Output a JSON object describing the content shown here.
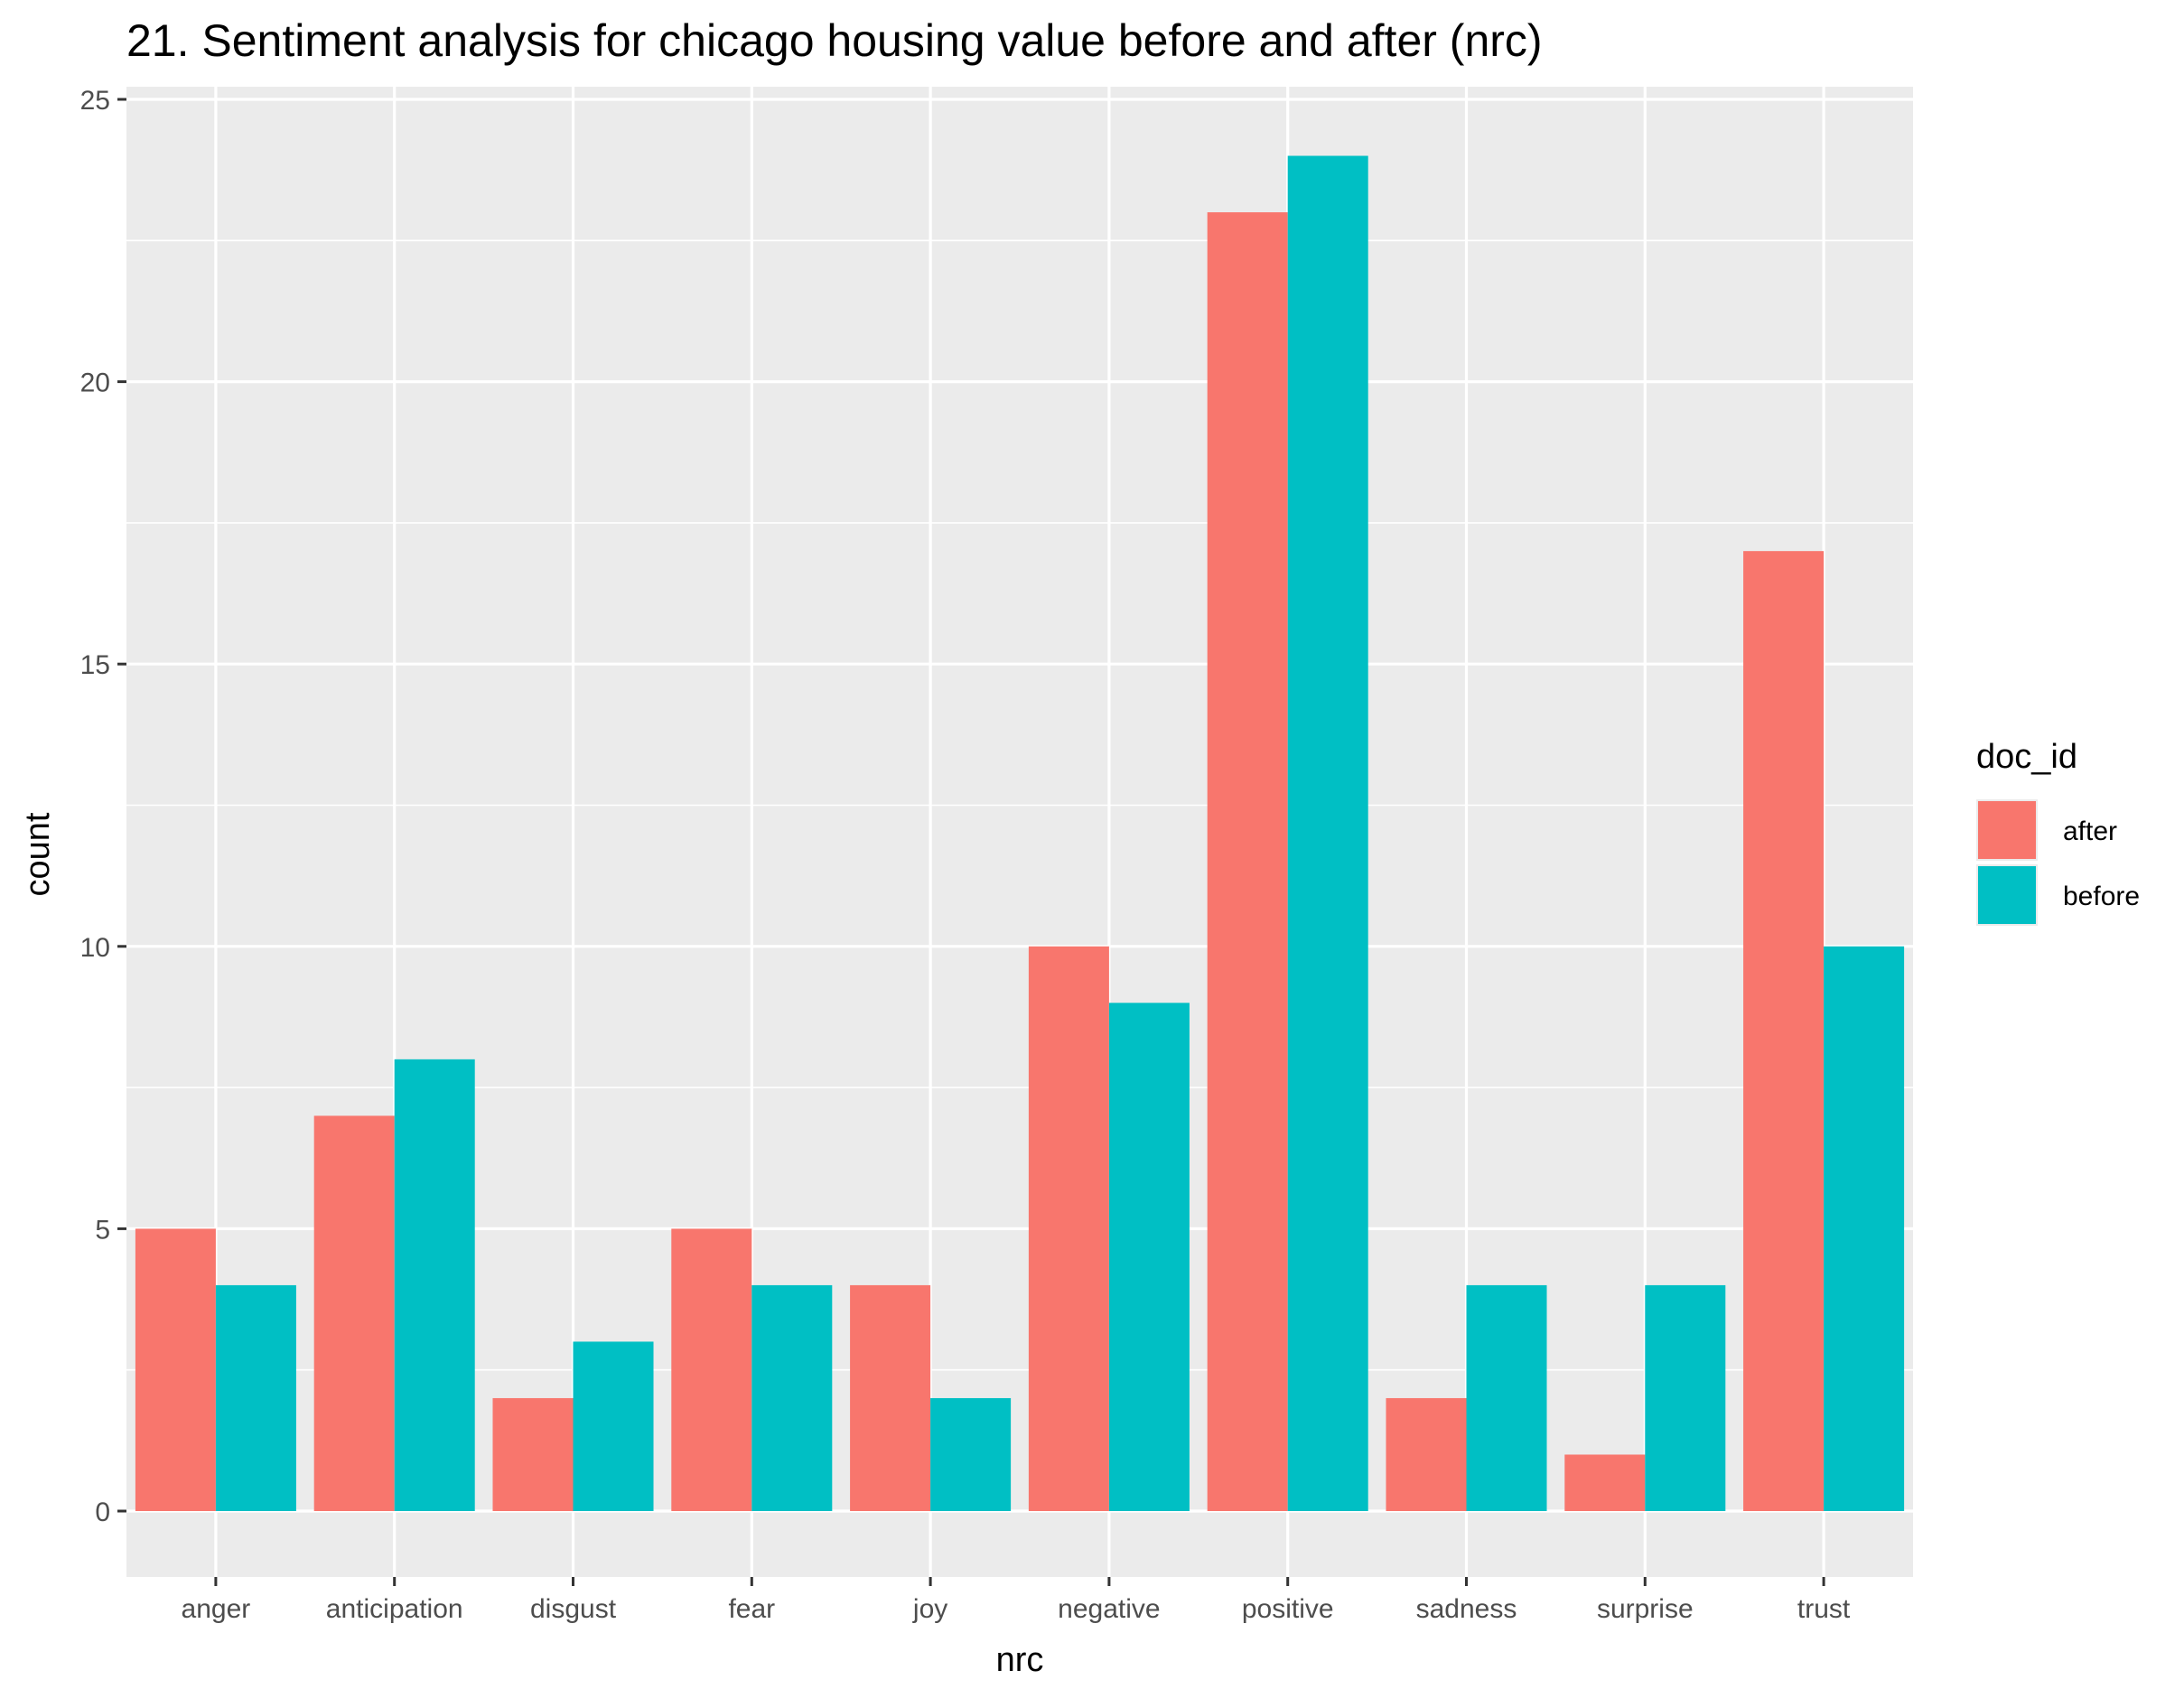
{
  "colors": {
    "after": "#F8766D",
    "before": "#00BFC4",
    "panel": "#EBEBEB",
    "grid": "#FFFFFF"
  },
  "chart_data": {
    "type": "bar",
    "title": "21. Sentiment analysis for chicago housing value before and after (nrc)",
    "xlabel": "nrc",
    "ylabel": "count",
    "categories": [
      "anger",
      "anticipation",
      "disgust",
      "fear",
      "joy",
      "negative",
      "positive",
      "sadness",
      "surprise",
      "trust"
    ],
    "series": [
      {
        "name": "after",
        "values": [
          5,
          7,
          2,
          5,
          4,
          10,
          23,
          2,
          1,
          17
        ]
      },
      {
        "name": "before",
        "values": [
          4,
          8,
          3,
          4,
          2,
          9,
          24,
          4,
          4,
          10
        ]
      }
    ],
    "ylim": [
      0,
      25
    ],
    "yticks": [
      0,
      5,
      10,
      15,
      20,
      25
    ],
    "yticks_labels": [
      "0",
      "5",
      "10",
      "15",
      "20",
      "25"
    ],
    "grid": true,
    "legend": {
      "title": "doc_id",
      "position": "right",
      "entries": [
        "after",
        "before"
      ]
    }
  }
}
